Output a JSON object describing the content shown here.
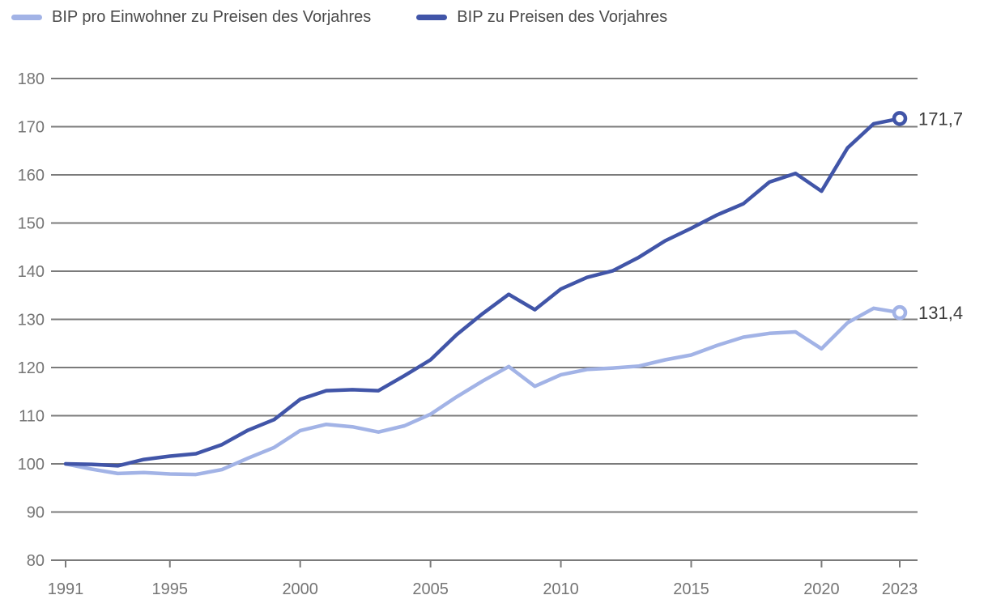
{
  "legend": {
    "items": [
      {
        "label": "BIP pro Einwohner zu Preisen des Vorjahres",
        "color": "#a2b3e6"
      },
      {
        "label": "BIP zu Preisen des Vorjahres",
        "color": "#4155a8"
      }
    ]
  },
  "chart_data": {
    "type": "line",
    "title": "",
    "xlabel": "",
    "ylabel": "",
    "x": [
      1991,
      1992,
      1993,
      1994,
      1995,
      1996,
      1997,
      1998,
      1999,
      2000,
      2001,
      2002,
      2003,
      2004,
      2005,
      2006,
      2007,
      2008,
      2009,
      2010,
      2011,
      2012,
      2013,
      2014,
      2015,
      2016,
      2017,
      2018,
      2019,
      2020,
      2021,
      2022,
      2023
    ],
    "series": [
      {
        "name": "BIP pro Einwohner zu Preisen des Vorjahres",
        "color": "#a2b3e6",
        "values": [
          100.0,
          98.9,
          98.0,
          98.2,
          97.9,
          97.8,
          98.8,
          101.2,
          103.4,
          106.9,
          108.2,
          107.7,
          106.6,
          107.9,
          110.3,
          113.9,
          117.2,
          120.2,
          116.1,
          118.5,
          119.6,
          119.9,
          120.3,
          121.6,
          122.6,
          124.6,
          126.3,
          127.1,
          127.4,
          123.9,
          129.3,
          132.3,
          131.4
        ],
        "end_label": "131,4",
        "end_value": 131.4
      },
      {
        "name": "BIP zu Preisen des Vorjahres",
        "color": "#4155a8",
        "values": [
          100.0,
          99.9,
          99.6,
          100.9,
          101.6,
          102.1,
          104.0,
          107.0,
          109.2,
          113.4,
          115.2,
          115.4,
          115.2,
          118.3,
          121.6,
          126.8,
          131.2,
          135.2,
          132.0,
          136.3,
          138.7,
          140.1,
          142.9,
          146.3,
          148.9,
          151.7,
          154.0,
          158.5,
          160.3,
          156.6,
          165.6,
          170.6,
          171.7
        ],
        "end_label": "171,7",
        "end_value": 171.7
      }
    ],
    "ylim": [
      80,
      180
    ],
    "yticks": [
      80,
      90,
      100,
      110,
      120,
      130,
      140,
      150,
      160,
      170,
      180
    ],
    "xticks": [
      1991,
      1995,
      2000,
      2005,
      2010,
      2015,
      2020,
      2023
    ],
    "grid": "horizontal",
    "legend_position": "top-left",
    "axis_color": "#7b7b7b",
    "tick_label_color": "#757575",
    "end_label_color": "#3d3d3d"
  }
}
